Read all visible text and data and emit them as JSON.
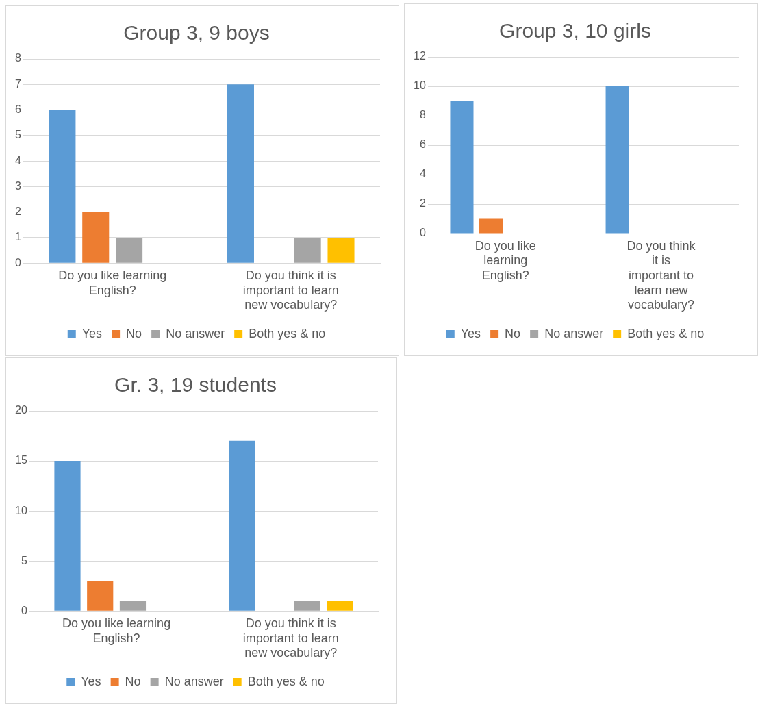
{
  "chart_data": [
    {
      "type": "bar",
      "title": "Group 3, 9 boys",
      "categories": [
        "Do you like learning English?",
        "Do you think it is important to learn new vocabulary?"
      ],
      "series": [
        {
          "name": "Yes",
          "color": "#5b9bd5",
          "values": [
            6,
            7
          ]
        },
        {
          "name": "No",
          "color": "#ed7d31",
          "values": [
            2,
            0
          ]
        },
        {
          "name": "No answer",
          "color": "#a5a5a5",
          "values": [
            1,
            1
          ]
        },
        {
          "name": "Both yes & no",
          "color": "#ffc000",
          "values": [
            0,
            1
          ]
        }
      ],
      "ylim": [
        0,
        8
      ],
      "yticks": [
        0,
        1,
        2,
        3,
        4,
        5,
        6,
        7,
        8
      ],
      "grid": "y",
      "legend": "bottom"
    },
    {
      "type": "bar",
      "title": "Group 3, 10 girls",
      "categories": [
        "Do you like learning English?",
        "Do you think it is important to learn new vocabulary?"
      ],
      "series": [
        {
          "name": "Yes",
          "color": "#5b9bd5",
          "values": [
            9,
            10
          ]
        },
        {
          "name": "No",
          "color": "#ed7d31",
          "values": [
            1,
            0
          ]
        },
        {
          "name": "No answer",
          "color": "#a5a5a5",
          "values": [
            0,
            0
          ]
        },
        {
          "name": "Both yes & no",
          "color": "#ffc000",
          "values": [
            0,
            0
          ]
        }
      ],
      "ylim": [
        0,
        12
      ],
      "yticks": [
        0,
        2,
        4,
        6,
        8,
        10,
        12
      ],
      "grid": "y",
      "legend": "bottom"
    },
    {
      "type": "bar",
      "title": "Gr. 3, 19 students",
      "categories": [
        "Do you like learning English?",
        "Do you think it is important to learn new vocabulary?"
      ],
      "series": [
        {
          "name": "Yes",
          "color": "#5b9bd5",
          "values": [
            15,
            17
          ]
        },
        {
          "name": "No",
          "color": "#ed7d31",
          "values": [
            3,
            0
          ]
        },
        {
          "name": "No answer",
          "color": "#a5a5a5",
          "values": [
            1,
            1
          ]
        },
        {
          "name": "Both yes & no",
          "color": "#ffc000",
          "values": [
            0,
            1
          ]
        }
      ],
      "ylim": [
        0,
        20
      ],
      "yticks": [
        0,
        5,
        10,
        15,
        20
      ],
      "grid": "y",
      "legend": "bottom"
    }
  ]
}
